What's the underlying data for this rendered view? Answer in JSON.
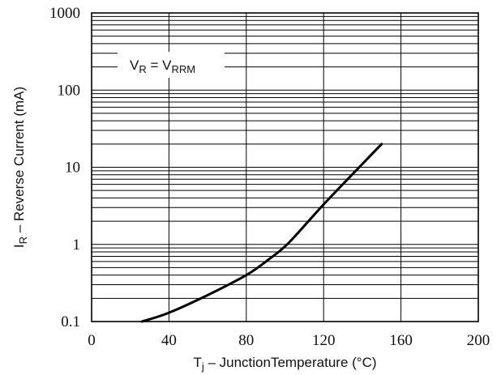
{
  "chart_data": {
    "type": "line",
    "xlabel": {
      "main": "T",
      "sub": "j",
      "rest": " – JunctionTemperature (°C)"
    },
    "ylabel": {
      "main": "I",
      "sub": "R",
      "rest": " – Reverse Current (mA)"
    },
    "xlim": [
      0,
      200
    ],
    "ylim": [
      0.1,
      1000
    ],
    "yscale": "log",
    "grid": true,
    "x_ticks": [
      0,
      40,
      80,
      120,
      160,
      200
    ],
    "x_tick_labels": [
      "0",
      "40",
      "80",
      "120",
      "160",
      "200"
    ],
    "y_ticks": [
      0.1,
      1,
      10,
      100,
      1000
    ],
    "y_tick_labels": [
      "0.1",
      "1",
      "10",
      "100",
      "1000"
    ],
    "annotation": {
      "v": "V",
      "r_sub": "R",
      "eq": " = V",
      "rrm_sub": "RRM"
    },
    "series": [
      {
        "x": [
          26,
          40,
          60,
          80,
          92,
          102,
          120,
          140,
          150
        ],
        "y": [
          0.1,
          0.13,
          0.22,
          0.4,
          0.65,
          1.05,
          3.3,
          11,
          20
        ]
      }
    ]
  }
}
